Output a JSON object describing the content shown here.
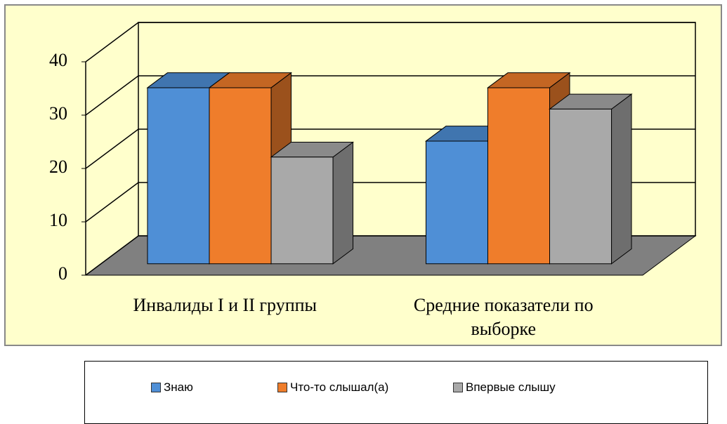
{
  "chart_data": {
    "type": "bar3d",
    "categories": [
      "Инвалиды I и II группы",
      "Средние показатели по выборке"
    ],
    "series": [
      {
        "name": "Знаю",
        "color": "#4f8fd6",
        "values": [
          33,
          23
        ]
      },
      {
        "name": "Что-то слышал(а)",
        "color": "#ef7d2b",
        "values": [
          33,
          33
        ]
      },
      {
        "name": "Впервые слышу",
        "color": "#a9a9a9",
        "values": [
          20,
          29
        ]
      }
    ],
    "ylim": [
      0,
      40
    ],
    "yticks": [
      0,
      10,
      20,
      30,
      40
    ],
    "grid": true,
    "legend": "bottom"
  }
}
